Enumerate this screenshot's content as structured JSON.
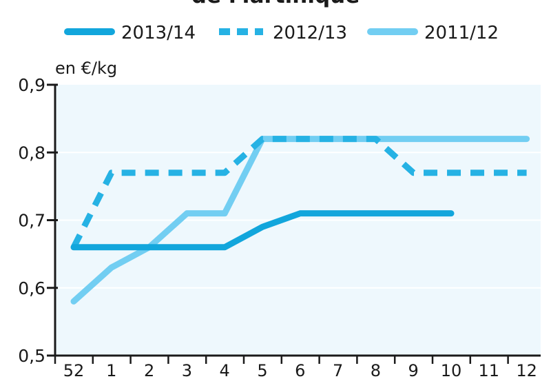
{
  "chart_data": {
    "type": "line",
    "title": "de Martinique",
    "ylabel": "en €/kg",
    "xlabel": "",
    "x": [
      "52",
      "1",
      "2",
      "3",
      "4",
      "5",
      "6",
      "7",
      "8",
      "9",
      "10",
      "11",
      "12"
    ],
    "y_ticks": [
      "0,5",
      "0,6",
      "0,7",
      "0,8",
      "0,9"
    ],
    "ylim": [
      0.5,
      0.9
    ],
    "grid": "horizontal",
    "legend_position": "top",
    "series": [
      {
        "name": "2013/14",
        "style": "solid",
        "color": "#12a6dc",
        "values": [
          0.66,
          0.66,
          0.66,
          0.66,
          0.66,
          0.69,
          0.71,
          0.71,
          0.71,
          0.71,
          0.71,
          null,
          null
        ]
      },
      {
        "name": "2012/13",
        "style": "dashed",
        "color": "#26b2e4",
        "values": [
          0.66,
          0.77,
          0.77,
          0.77,
          0.77,
          0.82,
          0.82,
          0.82,
          0.82,
          0.77,
          0.77,
          0.77,
          0.77
        ]
      },
      {
        "name": "2011/12",
        "style": "solid",
        "color": "#72cef2",
        "values": [
          0.58,
          0.63,
          0.66,
          0.71,
          0.71,
          0.82,
          0.82,
          0.82,
          0.82,
          0.82,
          0.82,
          0.82,
          0.82
        ]
      }
    ]
  }
}
